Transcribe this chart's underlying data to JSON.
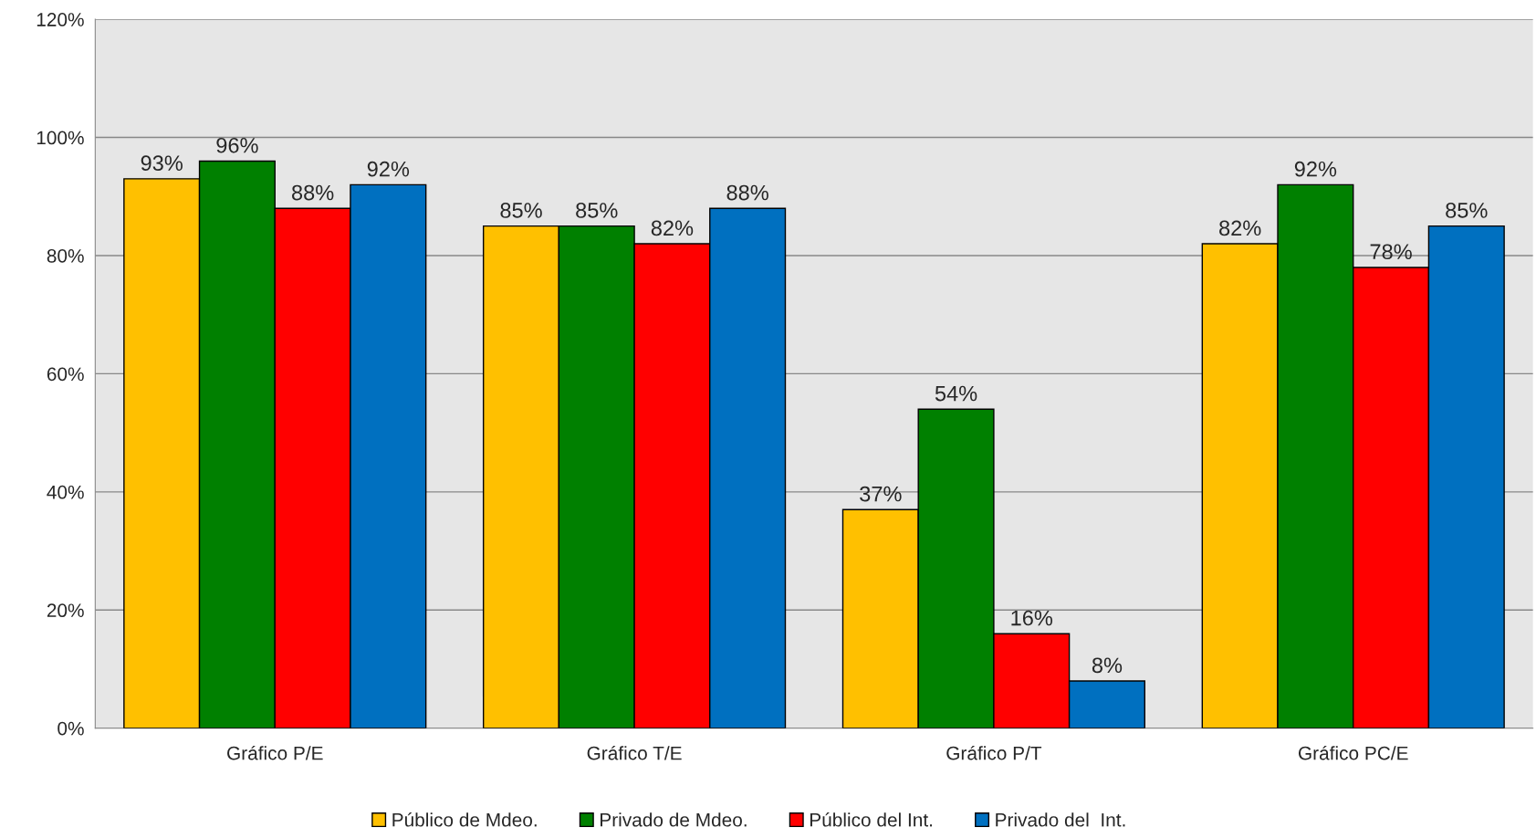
{
  "chart_data": {
    "type": "bar",
    "categories": [
      "Gráfico P/E",
      "Gráfico T/E",
      "Gráfico P/T",
      "Gráfico PC/E"
    ],
    "series": [
      {
        "name": "Público de Mdeo.",
        "color": "#ffc000",
        "values": [
          93,
          85,
          37,
          82
        ],
        "value_labels": [
          "93%",
          "85%",
          "37%",
          "82%"
        ]
      },
      {
        "name": "Privado de Mdeo.",
        "color": "#008000",
        "values": [
          96,
          85,
          54,
          92
        ],
        "value_labels": [
          "96%",
          "85%",
          "54%",
          "92%"
        ]
      },
      {
        "name": "Público del Int.",
        "color": "#ff0000",
        "values": [
          88,
          82,
          16,
          78
        ],
        "value_labels": [
          "88%",
          "82%",
          "16%",
          "78%"
        ]
      },
      {
        "name": "Privado del  Int.",
        "color": "#0070c0",
        "values": [
          92,
          88,
          8,
          85
        ],
        "value_labels": [
          "92%",
          "88%",
          "8%",
          "85%"
        ]
      }
    ],
    "ylim": [
      0,
      120
    ],
    "yticks": [
      {
        "value": 0,
        "label": "0%"
      },
      {
        "value": 20,
        "label": "20%"
      },
      {
        "value": 40,
        "label": "40%"
      },
      {
        "value": 60,
        "label": "60%"
      },
      {
        "value": 80,
        "label": "80%"
      },
      {
        "value": 100,
        "label": "100%"
      },
      {
        "value": 120,
        "label": "120%"
      }
    ],
    "grid": "y",
    "legend": "bottom"
  }
}
